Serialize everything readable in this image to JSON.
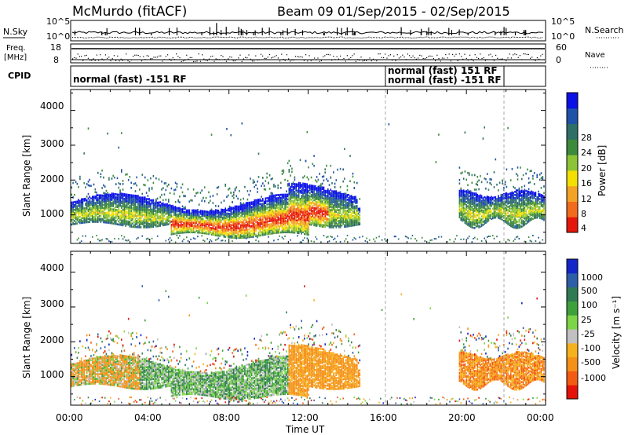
{
  "header": {
    "station": "McMurdo (fitACF)",
    "beam_info": "Beam 09  01/Sep/2015 - 02/Sep/2015"
  },
  "strips": {
    "noise_left": "N.Sky",
    "noise_right": "N.Search",
    "noise_ticks": [
      "10^5",
      "10^0"
    ],
    "freq_left_1": "Freq.",
    "freq_left_2": "[MHz]",
    "freq_ticks": [
      "18",
      "8"
    ],
    "nave_right": "Nave",
    "nave_ticks": [
      "60",
      "0"
    ],
    "cpid_label": "CPID",
    "cpid_text_1": "normal (fast) -151 RF",
    "cpid_text_2": "normal (fast) 151 RF",
    "cpid_text_3": "normal (fast) -151 RF"
  },
  "colorbars": {
    "power": {
      "label": "Power [dB]",
      "ticks": [
        "28",
        "24",
        "20",
        "16",
        "12",
        "8",
        "4"
      ],
      "colors": [
        "#0a10e6",
        "#1f52a8",
        "#2f6f66",
        "#3d8a3c",
        "#8cc436",
        "#f4e000",
        "#f3a325",
        "#f26b1c",
        "#e5160c"
      ]
    },
    "velocity": {
      "label": "Velocity [m s⁻¹]",
      "ticks": [
        "1000",
        "500",
        "100",
        "25",
        "-25",
        "-100",
        "-500",
        "-1000"
      ],
      "colors": [
        "#1526c8",
        "#2e5ea8",
        "#2f7a52",
        "#3ea03a",
        "#7cd446",
        "#c0c0c0",
        "#f6b11e",
        "#f59018",
        "#f35b12",
        "#e41208"
      ]
    }
  },
  "chart_data": [
    {
      "type": "heatmap",
      "name": "Power",
      "ylabel": "Slant Range [km]",
      "ylim": [
        180,
        4600
      ],
      "yticks": [
        "4000",
        "3000",
        "2000",
        "1000"
      ],
      "xlim": [
        0,
        24
      ],
      "xticks": [
        "00:00",
        "04:00",
        "08:00",
        "12:00",
        "16:00",
        "20:00",
        "00:00"
      ],
      "vertical_markers": [
        16.0,
        21.8
      ]
    },
    {
      "type": "heatmap",
      "name": "Velocity",
      "ylabel": "Slant Range [km]",
      "ylim": [
        180,
        4600
      ],
      "yticks": [
        "4000",
        "3000",
        "2000",
        "1000"
      ],
      "xlim": [
        0,
        24
      ],
      "xticks": [
        "00:00",
        "04:00",
        "08:00",
        "12:00",
        "16:00",
        "20:00",
        "00:00"
      ],
      "xlabel": "Time UT",
      "vertical_markers": [
        16.0,
        21.8
      ]
    }
  ]
}
